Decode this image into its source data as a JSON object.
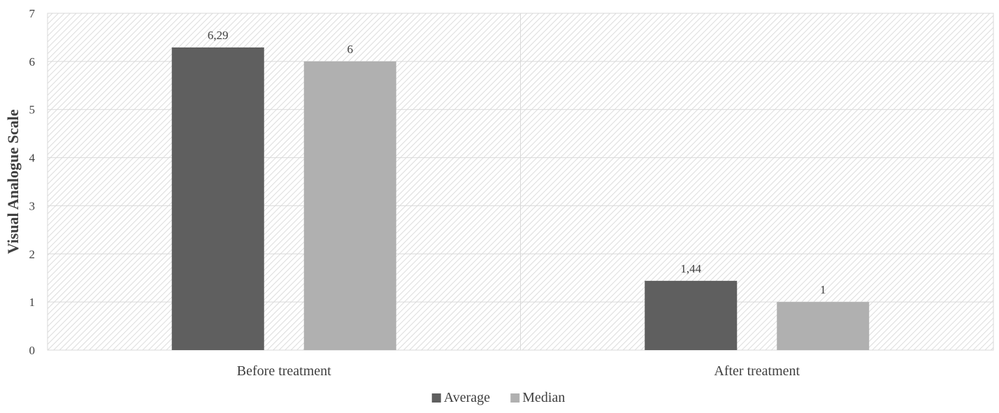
{
  "chart_data": {
    "type": "bar",
    "categories": [
      "Before treatment",
      "After treatment"
    ],
    "series": [
      {
        "name": "Average",
        "values": [
          6.29,
          1.44
        ],
        "labels": [
          "6,29",
          "1,44"
        ],
        "color": "#5f5f5f"
      },
      {
        "name": "Median",
        "values": [
          6,
          1
        ],
        "labels": [
          "6",
          "1"
        ],
        "color": "#b0b0b0"
      }
    ],
    "ylabel": "Visual Analogue Scale",
    "xlabel": "",
    "ylim": [
      0,
      7
    ],
    "yticks": [
      0,
      1,
      2,
      3,
      4,
      5,
      6,
      7
    ],
    "grid": true,
    "legend_position": "bottom",
    "plot_background": "diagonal-hatch",
    "grid_color": "#d9d9d9"
  }
}
